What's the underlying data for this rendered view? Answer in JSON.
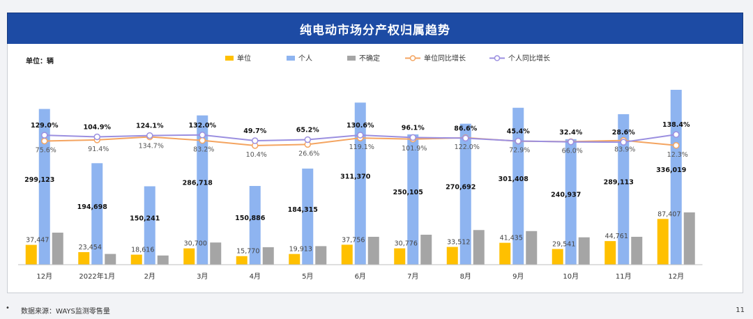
{
  "title": "纯电动市场分产权归属趋势",
  "unit_label": "单位：辆",
  "footer": {
    "bullet": "•",
    "source": "数据来源：WAYS监测零售量",
    "page": "11"
  },
  "colors": {
    "unit_bar": "#ffc000",
    "personal_bar": "#8eb4f0",
    "uncertain_bar": "#a5a5a5",
    "unit_yoy_line": "#f4a460",
    "personal_yoy_line": "#9b8fe0",
    "header": "#1d4ba4"
  },
  "chart_data": {
    "type": "bar",
    "categories": [
      "12月",
      "2022年1月",
      "2月",
      "3月",
      "4月",
      "5月",
      "6月",
      "7月",
      "8月",
      "9月",
      "10月",
      "11月",
      "12月"
    ],
    "series": [
      {
        "name": "单位",
        "kind": "bar",
        "color": "#ffc000",
        "values": [
          37447,
          23454,
          18616,
          30700,
          15770,
          19913,
          37756,
          30776,
          33512,
          41435,
          29541,
          44761,
          87407
        ],
        "labels": [
          "37,447",
          "23,454",
          "18,616",
          "30,700",
          "15,770",
          "19,913",
          "37,756",
          "30,776",
          "33,512",
          "41,435",
          "29,541",
          "44,761",
          "87,407"
        ]
      },
      {
        "name": "个人",
        "kind": "bar",
        "color": "#8eb4f0",
        "values": [
          299123,
          194698,
          150241,
          286718,
          150886,
          184315,
          311370,
          250105,
          270692,
          301408,
          240937,
          289113,
          336019
        ],
        "labels": [
          "299,123",
          "194,698",
          "150,241",
          "286,718",
          "150,886",
          "184,315",
          "311,370",
          "250,105",
          "270,692",
          "301,408",
          "240,937",
          "289,113",
          "336,019"
        ]
      },
      {
        "name": "不确定",
        "kind": "bar",
        "color": "#a5a5a5",
        "values": [
          61000,
          20000,
          17000,
          42000,
          33000,
          35000,
          53000,
          57000,
          66000,
          64000,
          52000,
          53000,
          100000
        ]
      },
      {
        "name": "单位同比增长",
        "kind": "line",
        "color": "#f4a460",
        "values": [
          75.6,
          91.4,
          134.7,
          83.2,
          10.4,
          26.6,
          119.1,
          101.9,
          122.0,
          72.9,
          66.0,
          83.9,
          12.3
        ],
        "labels": [
          "75.6%",
          "91.4%",
          "134.7%",
          "83.2%",
          "10.4%",
          "26.6%",
          "119.1%",
          "101.9%",
          "122.0%",
          "72.9%",
          "66.0%",
          "83.9%",
          "12.3%"
        ]
      },
      {
        "name": "个人同比增长",
        "kind": "line",
        "color": "#9b8fe0",
        "values": [
          129.0,
          104.9,
          124.1,
          132.0,
          49.7,
          65.2,
          130.6,
          96.1,
          86.6,
          45.4,
          32.4,
          28.6,
          138.4
        ],
        "labels": [
          "129.0%",
          "104.9%",
          "124.1%",
          "132.0%",
          "49.7%",
          "65.2%",
          "130.6%",
          "96.1%",
          "86.6%",
          "45.4%",
          "32.4%",
          "28.6%",
          "138.4%"
        ]
      }
    ],
    "legend_position": "top",
    "grid": false
  }
}
